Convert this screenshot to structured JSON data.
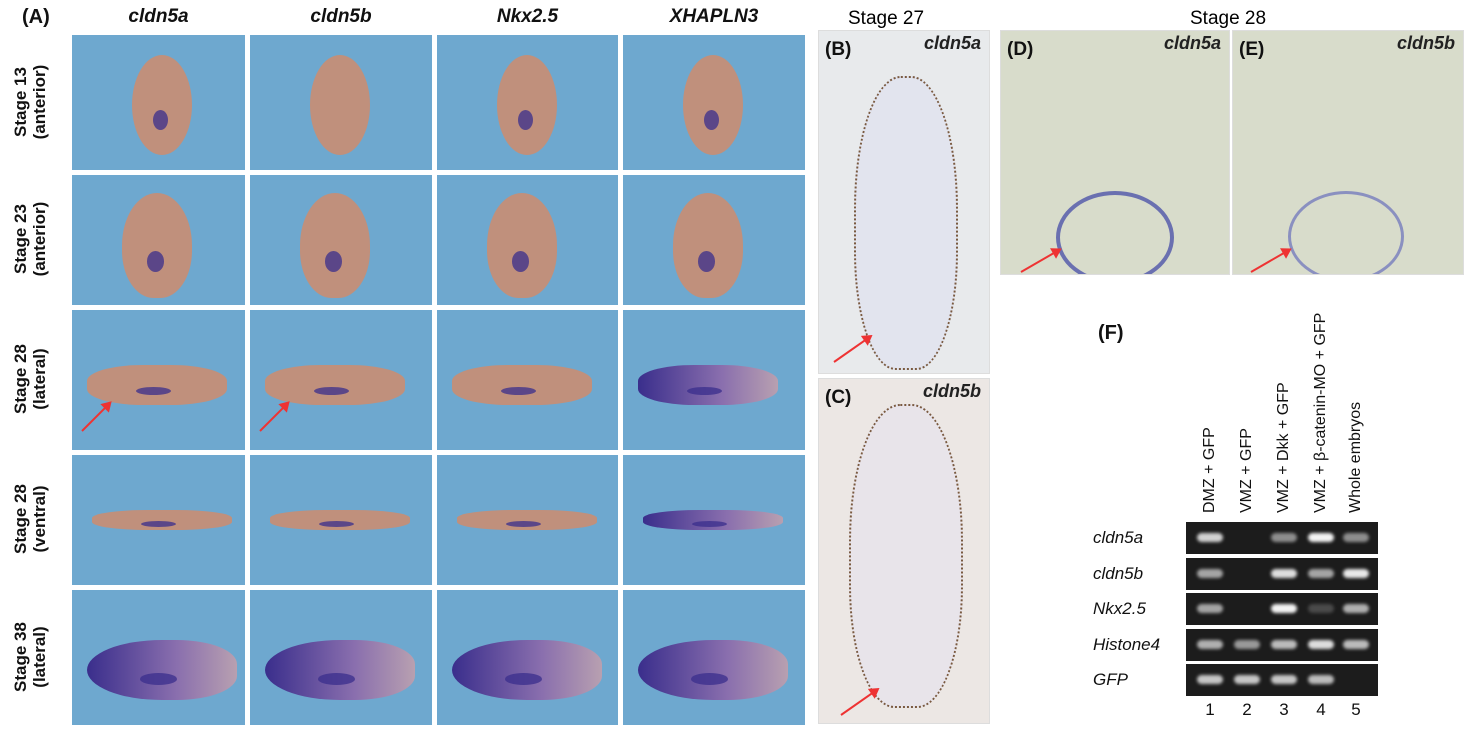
{
  "panel_a": {
    "label": "(A)",
    "columns": [
      "cldn5a",
      "cldn5b",
      "Nkx2.5",
      "XHAPLN3"
    ],
    "rows": [
      {
        "stage": "Stage 13",
        "view": "(anterior)"
      },
      {
        "stage": "Stage 23",
        "view": "(anterior)"
      },
      {
        "stage": "Stage 28",
        "view": "(lateral)"
      },
      {
        "stage": "Stage 28",
        "view": "(ventral)"
      },
      {
        "stage": "Stage 38",
        "view": "(lateral)"
      }
    ]
  },
  "stage27": "Stage 27",
  "stage28": "Stage 28",
  "panel_b": {
    "label": "(B)",
    "gene": "cldn5a"
  },
  "panel_c": {
    "label": "(C)",
    "gene": "cldn5b"
  },
  "panel_d": {
    "label": "(D)",
    "gene": "cldn5a"
  },
  "panel_e": {
    "label": "(E)",
    "gene": "cldn5b"
  },
  "panel_f": {
    "label": "(F)",
    "conditions": [
      "DMZ + GFP",
      "VMZ + GFP",
      "VMZ + Dkk + GFP",
      "VMZ + β-catenin-MO + GFP",
      "Whole embryos"
    ],
    "lanes": [
      "1",
      "2",
      "3",
      "4",
      "5"
    ],
    "genes": [
      {
        "name": "cldn5a",
        "intensity": [
          0.8,
          0,
          0.5,
          0.95,
          0.5
        ]
      },
      {
        "name": "cldn5b",
        "intensity": [
          0.6,
          0,
          0.85,
          0.6,
          0.9
        ]
      },
      {
        "name": "Nkx2.5",
        "intensity": [
          0.6,
          0,
          0.95,
          0.2,
          0.65
        ]
      },
      {
        "name": "Histone4",
        "intensity": [
          0.65,
          0.55,
          0.7,
          0.85,
          0.7
        ]
      },
      {
        "name": "GFP",
        "intensity": [
          0.75,
          0.75,
          0.75,
          0.7,
          0
        ]
      }
    ]
  },
  "colors": {
    "tile_bg": "#6ea8cf",
    "embryo": "#c0907c",
    "stain": "#3a2e8c",
    "arrow": "#e33333"
  }
}
